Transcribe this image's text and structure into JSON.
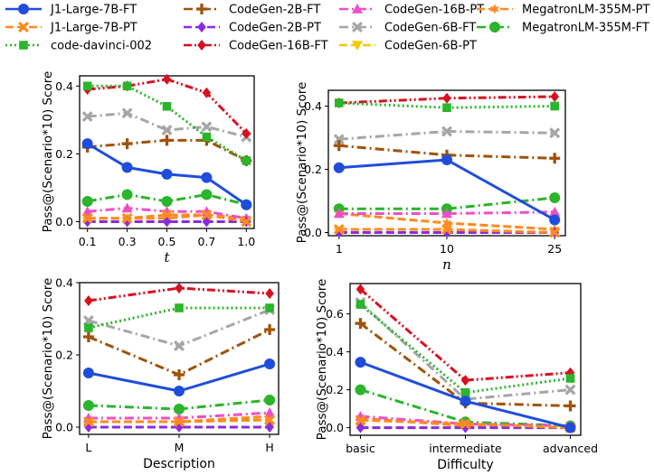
{
  "legend": [
    {
      "name": "J1-Large-7B-FT",
      "color": "#1f4ddb",
      "marker": "circle",
      "dash": "solid"
    },
    {
      "name": "J1-Large-7B-PT",
      "color": "#ff8a1e",
      "marker": "x",
      "dash": "dashed"
    },
    {
      "name": "code-davinci-002",
      "color": "#2ab52a",
      "marker": "square",
      "dash": "dotted"
    },
    {
      "name": "CodeGen-2B-FT",
      "color": "#a0520a",
      "marker": "plus",
      "dash": "dashdot"
    },
    {
      "name": "CodeGen-2B-PT",
      "color": "#8a2be2",
      "marker": "diamond",
      "dash": "dashed"
    },
    {
      "name": "CodeGen-16B-FT",
      "color": "#d8101f",
      "marker": "diamond",
      "dash": "dashdotdot"
    },
    {
      "name": "CodeGen-16B-PT",
      "color": "#ee4fc8",
      "marker": "triangle-up",
      "dash": "dashdot"
    },
    {
      "name": "CodeGen-6B-FT",
      "color": "#a6a6a6",
      "marker": "x",
      "dash": "dashdot"
    },
    {
      "name": "CodeGen-6B-PT",
      "color": "#f5c800",
      "marker": "triangle-down",
      "dash": "dashed"
    },
    {
      "name": "MegatronLM-355M-PT",
      "color": "#ff8a1e",
      "marker": "star",
      "dash": "dashed"
    },
    {
      "name": "MegatronLM-355M-FT",
      "color": "#2ab52a",
      "marker": "circle",
      "dash": "dashdot"
    }
  ],
  "chart_data": [
    {
      "type": "line",
      "id": "temperature",
      "xlabel": "t",
      "xlabel_italic": true,
      "ylabel": "Pass@(Scenario*10) Score",
      "categories": [
        "0.1",
        "0.3",
        "0.5",
        "0.7",
        "1.0"
      ],
      "ylim": [
        -0.02,
        0.43
      ],
      "yticks": [
        "0.0",
        "0.2",
        "0.4"
      ],
      "ytick_values": [
        0,
        0.2,
        0.4
      ],
      "series": [
        {
          "name": "J1-Large-7B-FT",
          "values": [
            0.23,
            0.16,
            0.14,
            0.13,
            0.05
          ]
        },
        {
          "name": "J1-Large-7B-PT",
          "values": [
            0.01,
            0.01,
            0.02,
            0.02,
            0.0
          ]
        },
        {
          "name": "code-davinci-002",
          "values": [
            0.4,
            0.4,
            0.34,
            0.25,
            0.18
          ]
        },
        {
          "name": "CodeGen-2B-FT",
          "values": [
            0.22,
            0.23,
            0.24,
            0.24,
            0.18
          ]
        },
        {
          "name": "CodeGen-2B-PT",
          "values": [
            0.0,
            0.0,
            0.0,
            0.0,
            0.0
          ]
        },
        {
          "name": "CodeGen-16B-FT",
          "values": [
            0.39,
            0.4,
            0.42,
            0.38,
            0.26
          ]
        },
        {
          "name": "CodeGen-16B-PT",
          "values": [
            0.03,
            0.04,
            0.03,
            0.03,
            0.01
          ]
        },
        {
          "name": "CodeGen-6B-FT",
          "values": [
            0.31,
            0.32,
            0.27,
            0.28,
            0.25
          ]
        },
        {
          "name": "CodeGen-6B-PT",
          "values": [
            0.0,
            0.0,
            0.0,
            0.0,
            0.0
          ]
        },
        {
          "name": "MegatronLM-355M-PT",
          "values": [
            0.01,
            0.01,
            0.01,
            0.02,
            0.01
          ]
        },
        {
          "name": "MegatronLM-355M-FT",
          "values": [
            0.06,
            0.08,
            0.06,
            0.08,
            0.05
          ]
        }
      ]
    },
    {
      "type": "line",
      "id": "n",
      "xlabel": "n",
      "xlabel_italic": true,
      "ylabel": "Pass@(Scenario*10) Score",
      "categories": [
        "1",
        "10",
        "25"
      ],
      "ylim": [
        -0.01,
        0.45
      ],
      "yticks": [
        "0.0",
        "0.2",
        "0.4"
      ],
      "ytick_values": [
        0,
        0.2,
        0.4
      ],
      "series": [
        {
          "name": "J1-Large-7B-FT",
          "values": [
            0.205,
            0.23,
            0.04
          ]
        },
        {
          "name": "J1-Large-7B-PT",
          "values": [
            0.01,
            0.01,
            0.0
          ]
        },
        {
          "name": "code-davinci-002",
          "values": [
            0.41,
            0.395,
            0.4
          ]
        },
        {
          "name": "CodeGen-2B-FT",
          "values": [
            0.275,
            0.245,
            0.235
          ]
        },
        {
          "name": "CodeGen-2B-PT",
          "values": [
            0.0,
            0.0,
            0.0
          ]
        },
        {
          "name": "CodeGen-16B-FT",
          "values": [
            0.41,
            0.425,
            0.43
          ]
        },
        {
          "name": "CodeGen-16B-PT",
          "values": [
            0.06,
            0.06,
            0.065
          ]
        },
        {
          "name": "CodeGen-6B-FT",
          "values": [
            0.295,
            0.32,
            0.315
          ]
        },
        {
          "name": "CodeGen-6B-PT",
          "values": [
            0.0,
            0.0,
            0.0
          ]
        },
        {
          "name": "MegatronLM-355M-PT",
          "values": [
            0.06,
            0.03,
            0.01
          ]
        },
        {
          "name": "MegatronLM-355M-FT",
          "values": [
            0.075,
            0.075,
            0.11
          ]
        }
      ]
    },
    {
      "type": "line",
      "id": "description",
      "xlabel": "Description",
      "xlabel_italic": false,
      "ylabel": "Pass@(Scenario*10) Score",
      "categories": [
        "L",
        "M",
        "H"
      ],
      "ylim": [
        -0.02,
        0.4
      ],
      "yticks": [
        "0.0",
        "0.2",
        "0.4"
      ],
      "ytick_values": [
        0,
        0.2,
        0.4
      ],
      "series": [
        {
          "name": "J1-Large-7B-FT",
          "values": [
            0.15,
            0.1,
            0.175
          ]
        },
        {
          "name": "J1-Large-7B-PT",
          "values": [
            0.015,
            0.015,
            0.02
          ]
        },
        {
          "name": "code-davinci-002",
          "values": [
            0.275,
            0.33,
            0.33
          ]
        },
        {
          "name": "CodeGen-2B-FT",
          "values": [
            0.25,
            0.145,
            0.27
          ]
        },
        {
          "name": "CodeGen-2B-PT",
          "values": [
            0.0,
            0.0,
            0.0
          ]
        },
        {
          "name": "CodeGen-16B-FT",
          "values": [
            0.35,
            0.385,
            0.37
          ]
        },
        {
          "name": "CodeGen-16B-PT",
          "values": [
            0.025,
            0.025,
            0.04
          ]
        },
        {
          "name": "CodeGen-6B-FT",
          "values": [
            0.295,
            0.225,
            0.325
          ]
        },
        {
          "name": "CodeGen-6B-PT",
          "values": [
            0.0,
            0.0,
            0.0
          ]
        },
        {
          "name": "MegatronLM-355M-PT",
          "values": [
            0.015,
            0.015,
            0.03
          ]
        },
        {
          "name": "MegatronLM-355M-FT",
          "values": [
            0.06,
            0.05,
            0.075
          ]
        }
      ]
    },
    {
      "type": "line",
      "id": "difficulty",
      "xlabel": "Difficulty",
      "xlabel_italic": false,
      "ylabel": "Pass@(Scenario*10) Score",
      "categories": [
        "basic",
        "intermediate",
        "advanced"
      ],
      "ylim": [
        -0.04,
        0.76
      ],
      "yticks": [
        "0.0",
        "0.2",
        "0.4",
        "0.6"
      ],
      "ytick_values": [
        0,
        0.2,
        0.4,
        0.6
      ],
      "series": [
        {
          "name": "J1-Large-7B-FT",
          "values": [
            0.345,
            0.14,
            0.0
          ]
        },
        {
          "name": "J1-Large-7B-PT",
          "values": [
            0.04,
            0.02,
            0.0
          ]
        },
        {
          "name": "code-davinci-002",
          "values": [
            0.65,
            0.185,
            0.26
          ]
        },
        {
          "name": "CodeGen-2B-FT",
          "values": [
            0.55,
            0.13,
            0.115
          ]
        },
        {
          "name": "CodeGen-2B-PT",
          "values": [
            0.0,
            0.0,
            0.0
          ]
        },
        {
          "name": "CodeGen-16B-FT",
          "values": [
            0.73,
            0.25,
            0.29
          ]
        },
        {
          "name": "CodeGen-16B-PT",
          "values": [
            0.06,
            0.02,
            0.01
          ]
        },
        {
          "name": "CodeGen-6B-FT",
          "values": [
            0.66,
            0.15,
            0.2
          ]
        },
        {
          "name": "CodeGen-6B-PT",
          "values": [
            0.0,
            0.0,
            0.0
          ]
        },
        {
          "name": "MegatronLM-355M-PT",
          "values": [
            0.05,
            0.01,
            0.0
          ]
        },
        {
          "name": "MegatronLM-355M-FT",
          "values": [
            0.2,
            0.03,
            0.01
          ]
        }
      ]
    }
  ]
}
